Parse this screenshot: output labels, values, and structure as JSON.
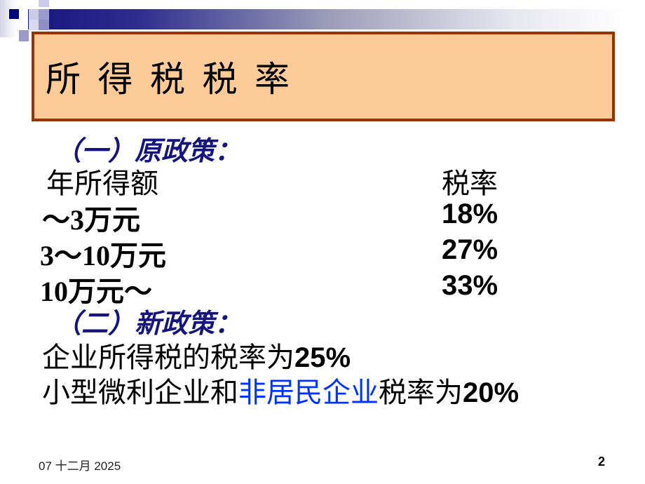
{
  "colors": {
    "accent_navy": "#000080",
    "bar_gradient_start": "#15157E",
    "lavender_light": "#CCCCEA",
    "lavender_mid": "#9999CC",
    "title_box_fill": "#FCCB97",
    "title_box_border": "#993300",
    "script_heading_navy": "#14147C",
    "highlight_blue": "#0033FF",
    "text_black": "#000000"
  },
  "title": {
    "text": "所 得 税 税 率"
  },
  "sections": {
    "old_policy": {
      "heading": "（一）原政策：",
      "table": {
        "header": {
          "income": "年所得额",
          "rate": "税率"
        },
        "rows": [
          {
            "income": "～3万元",
            "rate": "18%"
          },
          {
            "income": "3～10万元",
            "rate": "27%"
          },
          {
            "income": "10万元～",
            "rate": "33%"
          }
        ]
      }
    },
    "new_policy": {
      "heading": "（二）新政策：",
      "line1": {
        "prefix": "企业所得税的税率为",
        "rate": "25%"
      },
      "line2": {
        "prefix": "小型微利企业和",
        "highlight": "非居民企业",
        "middle": "税率为",
        "rate": "20%"
      }
    }
  },
  "footer": {
    "date": "07 十二月 2025",
    "page_number": "2"
  }
}
